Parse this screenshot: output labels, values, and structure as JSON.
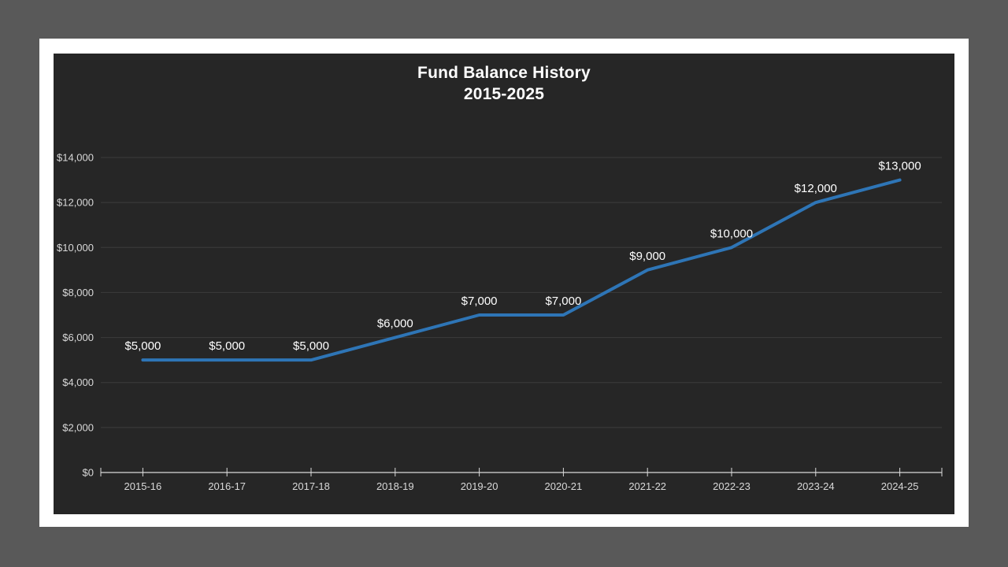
{
  "chart": {
    "title_line1": "Fund Balance History",
    "title_line2": "2015-2025"
  },
  "chart_data": {
    "type": "line",
    "title": "Fund Balance History 2015-2025",
    "categories": [
      "2015-16",
      "2016-17",
      "2017-18",
      "2018-19",
      "2019-20",
      "2020-21",
      "2021-22",
      "2022-23",
      "2023-24",
      "2024-25"
    ],
    "series": [
      {
        "name": "Fund Balance",
        "values": [
          5000,
          5000,
          5000,
          6000,
          7000,
          7000,
          9000,
          10000,
          12000,
          13000
        ]
      }
    ],
    "data_labels": [
      "$5,000",
      "$5,000",
      "$5,000",
      "$6,000",
      "$7,000",
      "$7,000",
      "$9,000",
      "$10,000",
      "$12,000",
      "$13,000"
    ],
    "y_tick_labels": [
      "$0",
      "$2,000",
      "$4,000",
      "$6,000",
      "$8,000",
      "$10,000",
      "$12,000",
      "$14,000"
    ],
    "ylim": [
      0,
      14000
    ],
    "y_step": 2000,
    "xlabel": "",
    "ylabel": "",
    "grid": true,
    "legend": "none",
    "colors": {
      "line": "#2E75B6",
      "chart_background": "#262626",
      "outer_background": "#595959",
      "slide_background": "#FFFFFF",
      "gridline": "#3C3C3C",
      "axis_line": "#D9D9D9",
      "axis_text": "#D9D9D9",
      "data_label_text": "#FFFFFF",
      "title_text": "#FFFFFF"
    }
  }
}
